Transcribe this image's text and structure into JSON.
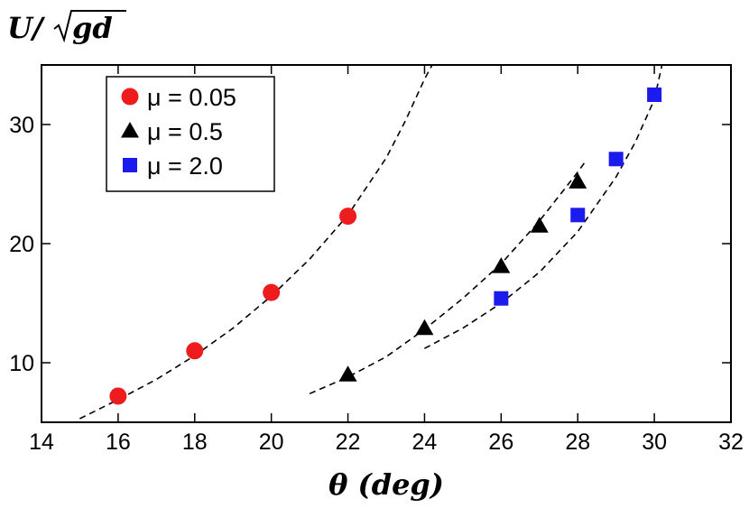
{
  "chart_data": {
    "type": "scatter",
    "xlabel": "θ (deg)",
    "ylabel": "U/√gd",
    "ylabel_parts": {
      "head": "U/",
      "radicand": "gd"
    },
    "xlim": [
      14,
      32
    ],
    "ylim": [
      5,
      35
    ],
    "xticks": [
      14,
      16,
      18,
      20,
      22,
      24,
      26,
      28,
      30,
      32
    ],
    "yticks": [
      10,
      20,
      30
    ],
    "legend_position": "top-left",
    "series": [
      {
        "name": "μ = 0.05",
        "marker": "circle",
        "color": "#ee1c1c",
        "points": [
          [
            16,
            7.2
          ],
          [
            18,
            11.0
          ],
          [
            20,
            15.9
          ],
          [
            22,
            22.3
          ]
        ],
        "fit": [
          [
            15,
            5.3
          ],
          [
            16,
            6.9
          ],
          [
            17,
            8.6
          ],
          [
            18,
            10.6
          ],
          [
            19,
            12.9
          ],
          [
            20,
            15.6
          ],
          [
            21,
            18.7
          ],
          [
            22,
            22.4
          ],
          [
            23,
            27.2
          ],
          [
            23.5,
            30.3
          ],
          [
            24,
            33.8
          ],
          [
            24.2,
            35.0
          ]
        ]
      },
      {
        "name": "μ = 0.5",
        "marker": "triangle",
        "color": "#000000",
        "points": [
          [
            22,
            9.0
          ],
          [
            24,
            12.9
          ],
          [
            26,
            18.1
          ],
          [
            27,
            21.5
          ],
          [
            28,
            25.2
          ]
        ],
        "fit": [
          [
            21,
            7.4
          ],
          [
            22,
            8.8
          ],
          [
            23,
            10.5
          ],
          [
            24,
            12.8
          ],
          [
            25,
            15.4
          ],
          [
            26,
            18.3
          ],
          [
            27,
            21.9
          ],
          [
            28,
            26.0
          ],
          [
            28.2,
            26.9
          ]
        ]
      },
      {
        "name": "μ = 2.0",
        "marker": "square",
        "color": "#1b1bee",
        "points": [
          [
            26,
            15.4
          ],
          [
            28,
            22.4
          ],
          [
            29,
            27.1
          ],
          [
            30,
            32.5
          ]
        ],
        "fit": [
          [
            24,
            11.2
          ],
          [
            25,
            12.9
          ],
          [
            26,
            15.0
          ],
          [
            27,
            17.6
          ],
          [
            28,
            21.0
          ],
          [
            29,
            25.6
          ],
          [
            29.5,
            28.5
          ],
          [
            30,
            32.1
          ],
          [
            30.2,
            35.0
          ]
        ]
      }
    ]
  }
}
